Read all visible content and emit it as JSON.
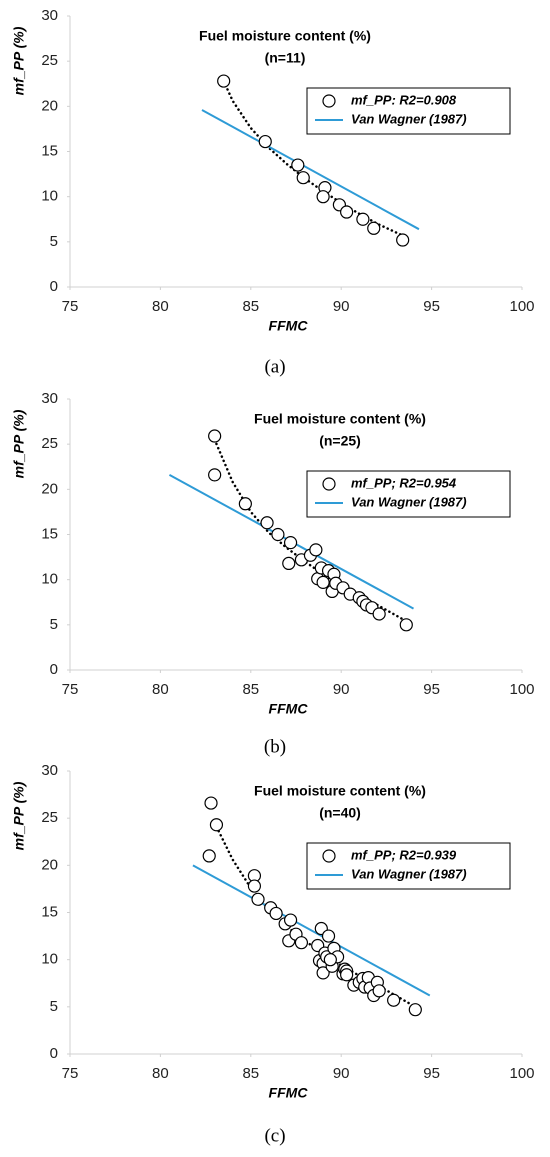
{
  "chart_data": [
    {
      "type": "scatter",
      "title": "Fuel moisture content (%)",
      "subtitle": "(n=11)",
      "caption": "(a)",
      "xlabel": "FFMC",
      "ylabel": "mf_PP (%)",
      "xlim": [
        75,
        100
      ],
      "xticks": [
        75,
        80,
        85,
        90,
        95,
        100
      ],
      "ylim": [
        0,
        30
      ],
      "yticks": [
        0,
        5,
        10,
        15,
        20,
        25,
        30
      ],
      "legend": "upper right",
      "series": [
        {
          "name": "mf_PP: R2=0.908",
          "style": "marker",
          "color": "#000000",
          "x": [
            83.5,
            85.8,
            87.6,
            87.9,
            89.1,
            89.0,
            89.9,
            90.3,
            91.2,
            91.8,
            93.4
          ],
          "values": [
            22.8,
            16.1,
            13.5,
            12.1,
            11.0,
            10.0,
            9.1,
            8.3,
            7.5,
            6.5,
            5.2
          ]
        },
        {
          "style": "dotted",
          "color": "#000000",
          "x": [
            83.5,
            84,
            85,
            86,
            87,
            88,
            89,
            90,
            91,
            92,
            93.4
          ],
          "values": [
            22.8,
            20.6,
            17.6,
            15.4,
            13.6,
            12.0,
            10.6,
            9.3,
            8.1,
            7.0,
            5.7
          ]
        },
        {
          "name": "Van Wagner (1987)",
          "style": "solid",
          "color": "#2e9bd6",
          "x": [
            82.3,
            94.3
          ],
          "values": [
            19.6,
            6.4
          ]
        }
      ]
    },
    {
      "type": "scatter",
      "title": "Fuel moisture content (%)",
      "subtitle": "(n=25)",
      "caption": "(b)",
      "xlabel": "FFMC",
      "ylabel": "mf_PP (%)",
      "xlim": [
        75,
        100
      ],
      "xticks": [
        75,
        80,
        85,
        90,
        95,
        100
      ],
      "ylim": [
        0,
        30
      ],
      "yticks": [
        0,
        5,
        10,
        15,
        20,
        25,
        30
      ],
      "legend": "upper right",
      "series": [
        {
          "name": "mf_PP; R2=0.954",
          "style": "marker",
          "color": "#000000",
          "x": [
            83.0,
            83.0,
            84.7,
            85.9,
            86.5,
            87.2,
            87.1,
            87.8,
            88.3,
            88.6,
            88.7,
            88.9,
            89.0,
            89.3,
            89.5,
            89.6,
            89.7,
            90.1,
            90.5,
            91.0,
            91.2,
            91.4,
            91.7,
            92.1,
            93.6
          ],
          "values": [
            25.9,
            21.6,
            18.4,
            16.3,
            15.0,
            14.1,
            11.8,
            12.2,
            12.7,
            13.3,
            10.1,
            11.3,
            9.7,
            11.0,
            8.7,
            10.6,
            9.6,
            9.1,
            8.4,
            8.0,
            7.6,
            7.2,
            6.9,
            6.2,
            5.0
          ]
        },
        {
          "style": "dotted",
          "color": "#000000",
          "x": [
            83,
            84,
            85,
            86,
            87,
            88,
            89,
            90,
            91,
            92,
            93.6
          ],
          "values": [
            25.5,
            20.8,
            17.5,
            15.2,
            13.5,
            12.0,
            10.6,
            9.4,
            8.3,
            7.2,
            5.4
          ]
        },
        {
          "name": "Van Wagner (1987)",
          "style": "solid",
          "color": "#2e9bd6",
          "x": [
            80.5,
            94.0
          ],
          "values": [
            21.6,
            6.8
          ]
        }
      ]
    },
    {
      "type": "scatter",
      "title": "Fuel moisture content (%)",
      "subtitle": "(n=40)",
      "caption": "(c)",
      "xlabel": "FFMC",
      "ylabel": "mf_PP (%)",
      "xlim": [
        75,
        100
      ],
      "xticks": [
        75,
        80,
        85,
        90,
        95,
        100
      ],
      "ylim": [
        0,
        30
      ],
      "yticks": [
        0,
        5,
        10,
        15,
        20,
        25,
        30
      ],
      "legend": "upper right",
      "series": [
        {
          "name": "mf_PP; R2=0.939",
          "style": "marker",
          "color": "#000000",
          "x": [
            82.8,
            83.1,
            82.7,
            85.2,
            85.2,
            85.4,
            86.1,
            86.4,
            86.9,
            87.2,
            87.1,
            87.5,
            87.8,
            88.7,
            88.8,
            88.9,
            89.0,
            89.0,
            89.1,
            89.2,
            89.3,
            89.5,
            89.6,
            89.8,
            90.1,
            90.2,
            90.3,
            90.7,
            91.0,
            91.2,
            91.3,
            91.5,
            91.6,
            91.8,
            92.0,
            92.1,
            92.9,
            94.1,
            90.3,
            89.4
          ],
          "values": [
            26.6,
            24.3,
            21.0,
            18.9,
            17.8,
            16.4,
            15.5,
            14.9,
            13.8,
            14.2,
            12.0,
            12.7,
            11.8,
            11.5,
            9.9,
            13.3,
            9.6,
            8.6,
            10.7,
            10.3,
            12.5,
            9.3,
            11.2,
            10.3,
            8.5,
            9.0,
            8.8,
            7.3,
            7.6,
            8.0,
            7.1,
            8.1,
            7.0,
            6.2,
            7.6,
            6.7,
            5.7,
            4.7,
            8.4,
            10.0
          ]
        },
        {
          "style": "dotted",
          "color": "#000000",
          "x": [
            83,
            84,
            85,
            86,
            87,
            88,
            89,
            90,
            91,
            92,
            94.1
          ],
          "values": [
            24.5,
            20.6,
            17.6,
            15.3,
            13.5,
            12.0,
            10.6,
            9.4,
            8.3,
            7.3,
            5.0
          ]
        },
        {
          "name": "Van Wagner (1987)",
          "style": "solid",
          "color": "#2e9bd6",
          "x": [
            81.8,
            94.9
          ],
          "values": [
            20.0,
            6.2
          ]
        }
      ]
    }
  ]
}
